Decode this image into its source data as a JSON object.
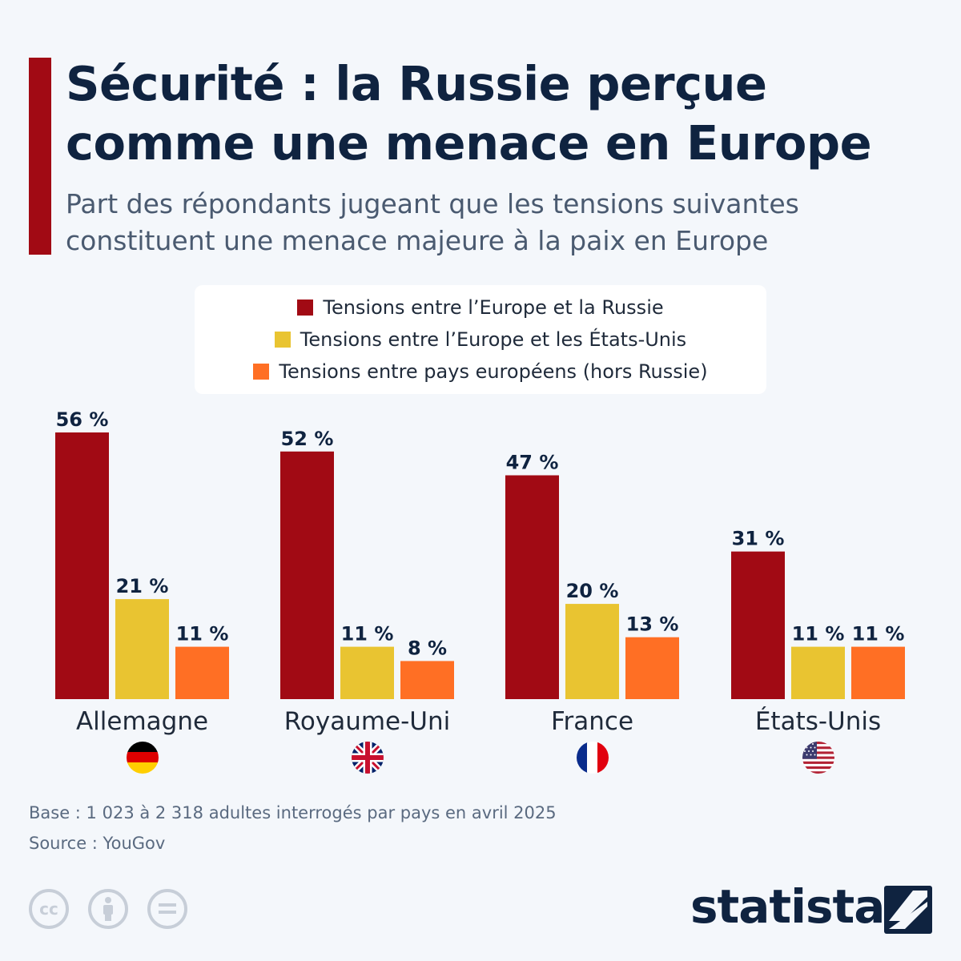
{
  "header": {
    "title": "Sécurité : la Russie perçue comme une menace en Europe",
    "subtitle": "Part des répondants jugeant que les tensions suivantes constituent une menace majeure à la paix en Europe"
  },
  "chart_data": {
    "type": "bar",
    "title": "Sécurité : la Russie perçue comme une menace en Europe",
    "subtitle": "Part des répondants jugeant que les tensions suivantes constituent une menace majeure à la paix en Europe",
    "categories": [
      "Allemagne",
      "Royaume-Uni",
      "France",
      "États-Unis"
    ],
    "series": [
      {
        "name": "Tensions entre l’Europe et la Russie",
        "values": [
          56,
          52,
          47,
          31
        ],
        "color": "#a10a14"
      },
      {
        "name": "Tensions entre l’Europe et les États-Unis",
        "values": [
          21,
          11,
          20,
          11
        ],
        "color": "#e9c431"
      },
      {
        "name": "Tensions entre pays européens (hors Russie)",
        "values": [
          11,
          8,
          13,
          11
        ],
        "color": "#ff6f24"
      }
    ],
    "value_suffix": " %",
    "ylim": [
      0,
      60
    ],
    "grid": false,
    "legend_position": "top-center",
    "flag_icons": [
      "germany-flag-icon",
      "uk-flag-icon",
      "france-flag-icon",
      "usa-flag-icon"
    ]
  },
  "footer": {
    "base": "Base : 1 023 à 2 318 adultes interrogés par pays en avril 2025",
    "source": "Source : YouGov",
    "brand": "statista",
    "license_icons": [
      "cc-icon",
      "attribution-icon",
      "no-derivatives-icon"
    ]
  }
}
